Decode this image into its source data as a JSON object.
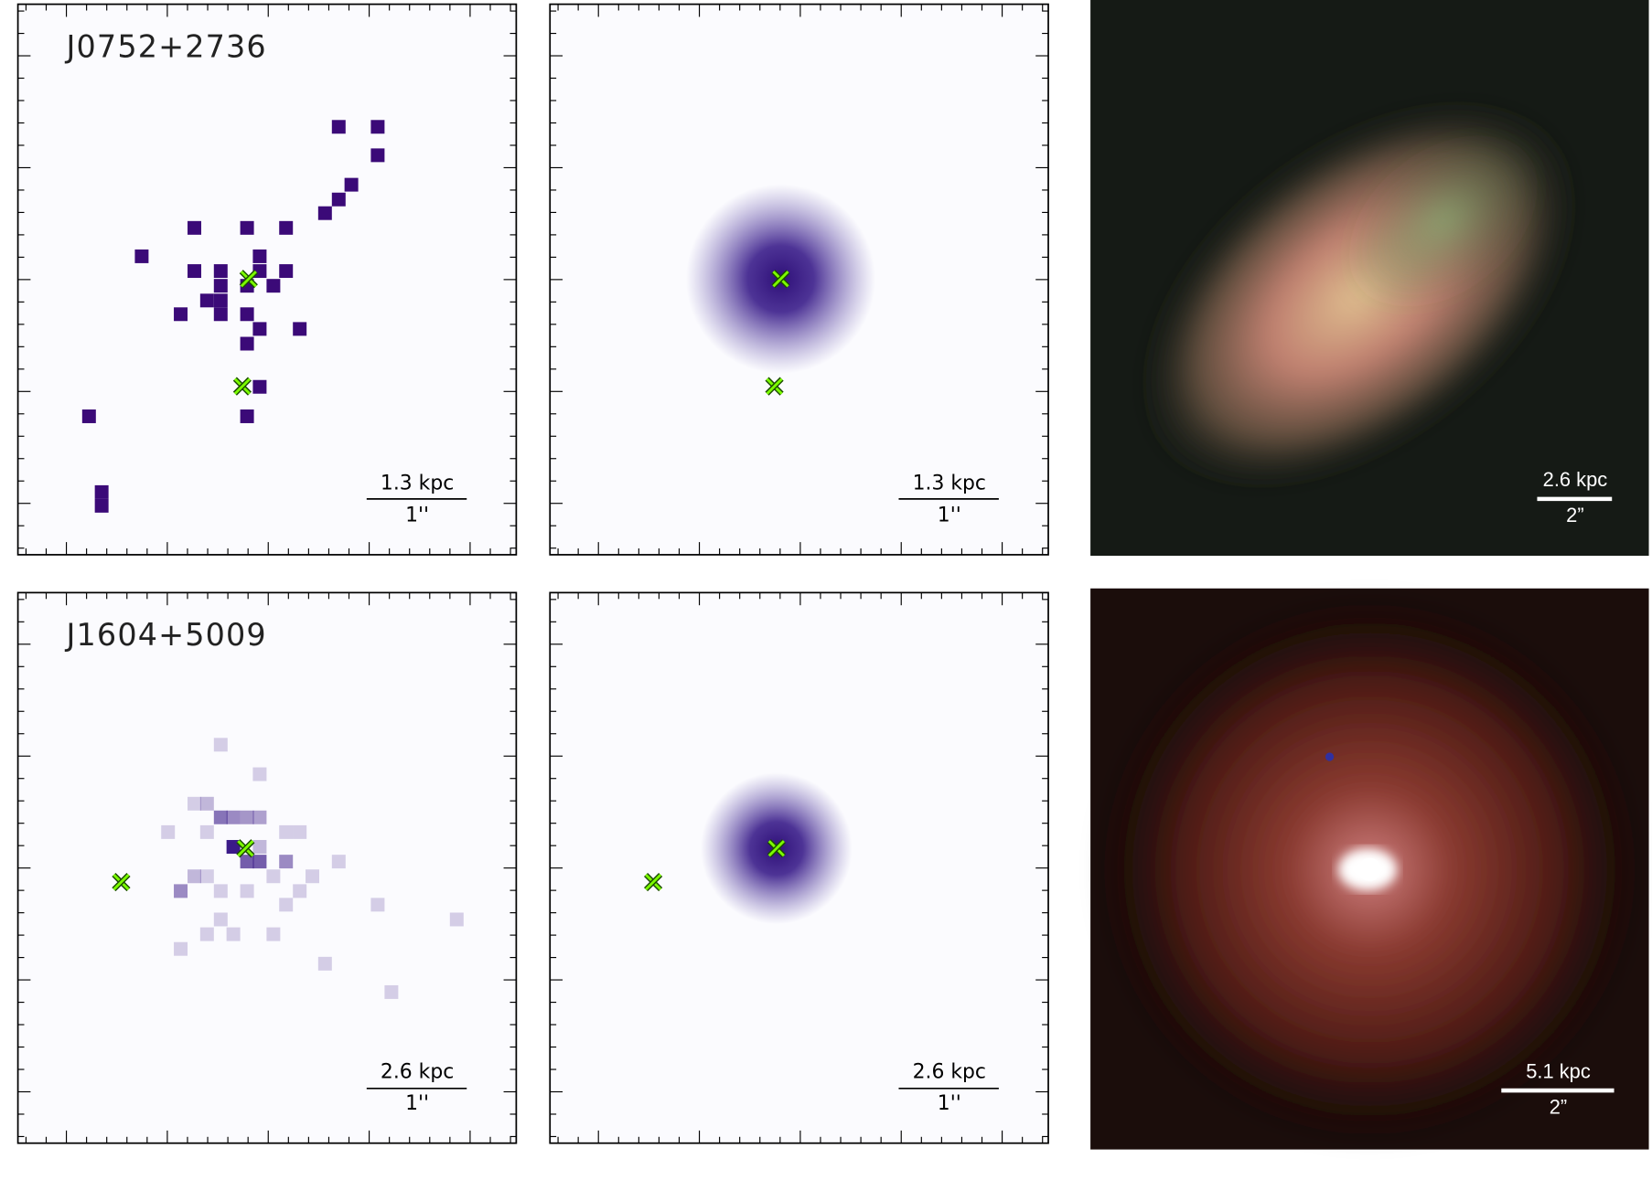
{
  "rows": [
    {
      "name": "J0752+2736",
      "map_scale": {
        "kpc": "1.3 kpc",
        "arcsec": "1''"
      },
      "model_scale": {
        "kpc": "1.3 kpc",
        "arcsec": "1''"
      },
      "image_scale": {
        "kpc": "2.6 kpc",
        "arcsec": "2”"
      }
    },
    {
      "name": "J1604+5009",
      "map_scale": {
        "kpc": "2.6 kpc",
        "arcsec": "1''"
      },
      "model_scale": {
        "kpc": "2.6 kpc",
        "arcsec": "1''"
      },
      "image_scale": {
        "kpc": "5.1 kpc",
        "arcsec": "2”"
      }
    }
  ]
}
